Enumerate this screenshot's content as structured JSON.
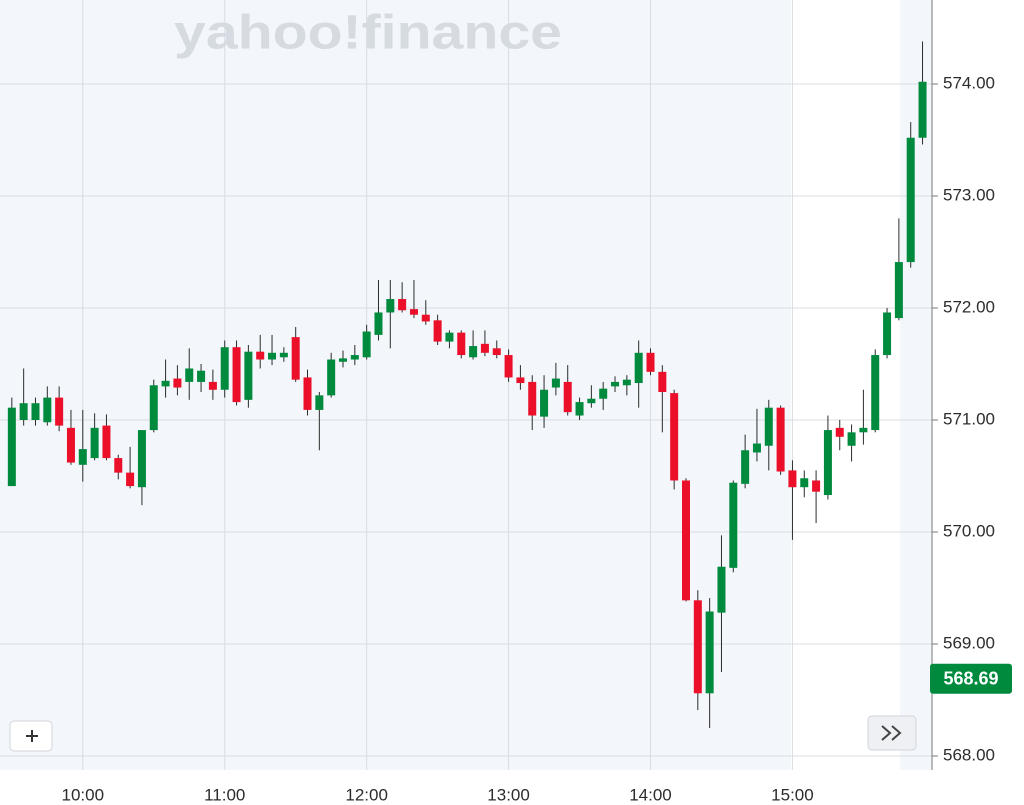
{
  "chart_data": {
    "type": "candlestick",
    "watermark": "yahoo!finance",
    "x": [
      "09:30",
      "09:35",
      "09:40",
      "09:45",
      "09:50",
      "09:55",
      "10:00",
      "10:05",
      "10:10",
      "10:15",
      "10:20",
      "10:25",
      "10:30",
      "10:35",
      "10:40",
      "10:45",
      "10:50",
      "10:55",
      "11:00",
      "11:05",
      "11:10",
      "11:15",
      "11:20",
      "11:25",
      "11:30",
      "11:35",
      "11:40",
      "11:45",
      "11:50",
      "11:55",
      "12:00",
      "12:05",
      "12:10",
      "12:15",
      "12:20",
      "12:25",
      "12:30",
      "12:35",
      "12:40",
      "12:45",
      "12:50",
      "12:55",
      "13:00",
      "13:05",
      "13:10",
      "13:15",
      "13:20",
      "13:25",
      "13:30",
      "13:35",
      "13:40",
      "13:45",
      "13:50",
      "13:55",
      "14:00",
      "14:05",
      "14:10",
      "14:15",
      "14:20",
      "14:25",
      "14:30",
      "14:35",
      "14:40",
      "14:45",
      "14:50",
      "14:55",
      "15:00",
      "15:05",
      "15:10",
      "15:15",
      "15:20",
      "15:25",
      "15:30",
      "15:35",
      "15:40",
      "15:45",
      "15:50",
      "15:55"
    ],
    "open": [
      570.41,
      571.0,
      571.0,
      570.98,
      571.2,
      570.93,
      570.6,
      570.66,
      570.95,
      570.66,
      570.53,
      570.4,
      570.91,
      571.3,
      571.37,
      571.34,
      571.34,
      571.34,
      571.27,
      571.65,
      571.18,
      571.61,
      571.54,
      571.56,
      571.74,
      571.38,
      571.09,
      571.22,
      571.52,
      571.54,
      571.56,
      571.76,
      571.96,
      572.08,
      571.99,
      571.94,
      571.89,
      571.7,
      571.78,
      571.56,
      571.68,
      571.64,
      571.58,
      571.38,
      571.34,
      571.03,
      571.29,
      571.34,
      571.04,
      571.15,
      571.19,
      571.3,
      571.31,
      571.33,
      571.6,
      571.43,
      571.24,
      570.46,
      569.39,
      568.56,
      569.28,
      569.68,
      570.43,
      570.71,
      570.77,
      571.11,
      570.55,
      570.4,
      570.46,
      570.33,
      570.93,
      570.77,
      570.89,
      570.91,
      571.58,
      571.91,
      572.41,
      573.52
    ],
    "high": [
      571.2,
      571.46,
      571.2,
      571.3,
      571.3,
      571.09,
      571.09,
      571.06,
      571.05,
      570.69,
      570.76,
      570.91,
      571.36,
      571.54,
      571.49,
      571.64,
      571.5,
      571.45,
      571.71,
      571.71,
      571.67,
      571.76,
      571.76,
      571.65,
      571.83,
      571.45,
      571.25,
      571.6,
      571.62,
      571.67,
      571.85,
      572.25,
      572.25,
      572.23,
      572.25,
      572.07,
      571.94,
      571.8,
      571.8,
      571.8,
      571.8,
      571.71,
      571.63,
      571.49,
      571.4,
      571.4,
      571.51,
      571.49,
      571.2,
      571.31,
      571.34,
      571.39,
      571.4,
      571.71,
      571.64,
      571.49,
      571.27,
      570.48,
      569.48,
      569.41,
      569.97,
      570.46,
      570.87,
      571.1,
      571.18,
      571.13,
      570.64,
      570.55,
      570.55,
      571.04,
      571.0,
      570.96,
      571.27,
      571.63,
      572.0,
      572.8,
      573.66,
      574.38
    ],
    "low": [
      570.41,
      570.95,
      570.95,
      570.95,
      570.9,
      570.6,
      570.45,
      570.64,
      570.64,
      570.47,
      570.39,
      570.24,
      570.89,
      571.2,
      571.22,
      571.18,
      571.25,
      571.18,
      571.2,
      571.13,
      571.11,
      571.46,
      571.49,
      571.52,
      571.34,
      571.04,
      570.73,
      571.2,
      571.47,
      571.49,
      571.54,
      571.71,
      571.64,
      571.96,
      571.91,
      571.85,
      571.67,
      571.64,
      571.55,
      571.54,
      571.57,
      571.55,
      571.34,
      571.27,
      570.91,
      570.93,
      571.22,
      571.04,
      571.0,
      571.11,
      571.09,
      571.25,
      571.22,
      571.11,
      571.4,
      570.89,
      570.38,
      569.38,
      568.41,
      568.25,
      568.75,
      569.64,
      570.39,
      570.63,
      570.55,
      570.51,
      569.93,
      570.31,
      570.08,
      570.29,
      570.73,
      570.63,
      570.78,
      570.89,
      571.55,
      571.89,
      572.36,
      573.46
    ],
    "close": [
      571.11,
      571.15,
      571.15,
      571.2,
      570.95,
      570.62,
      570.74,
      570.93,
      570.66,
      570.53,
      570.41,
      570.91,
      571.31,
      571.35,
      571.29,
      571.46,
      571.44,
      571.27,
      571.65,
      571.16,
      571.61,
      571.54,
      571.6,
      571.6,
      571.36,
      571.09,
      571.22,
      571.54,
      571.55,
      571.58,
      571.79,
      571.96,
      572.08,
      571.98,
      571.94,
      571.88,
      571.7,
      571.78,
      571.58,
      571.66,
      571.6,
      571.58,
      571.38,
      571.33,
      571.04,
      571.27,
      571.37,
      571.07,
      571.16,
      571.19,
      571.28,
      571.34,
      571.36,
      571.6,
      571.43,
      571.25,
      570.46,
      569.39,
      568.56,
      569.29,
      569.69,
      570.44,
      570.73,
      570.79,
      571.11,
      570.54,
      570.4,
      570.48,
      570.36,
      570.91,
      570.85,
      570.89,
      570.93,
      571.58,
      571.96,
      572.41,
      573.52,
      574.02
    ],
    "up_color": "#008a3e",
    "down_color": "#eb0f29",
    "last_price": 568.69,
    "xlim": [
      "09:25",
      "15:59"
    ],
    "xticks": [
      "10:00",
      "11:00",
      "12:00",
      "13:00",
      "14:00",
      "15:00"
    ],
    "ylim": [
      567.875,
      574.75
    ],
    "yticks": [
      {
        "value": 568,
        "label": "568.00"
      },
      {
        "value": 569,
        "label": "569.00"
      },
      {
        "value": 570,
        "label": "570.00"
      },
      {
        "value": 571,
        "label": "571.00"
      },
      {
        "value": 572,
        "label": "572.00"
      },
      {
        "value": 573,
        "label": "573.00"
      },
      {
        "value": 574,
        "label": "574.00"
      }
    ],
    "grid": true
  }
}
